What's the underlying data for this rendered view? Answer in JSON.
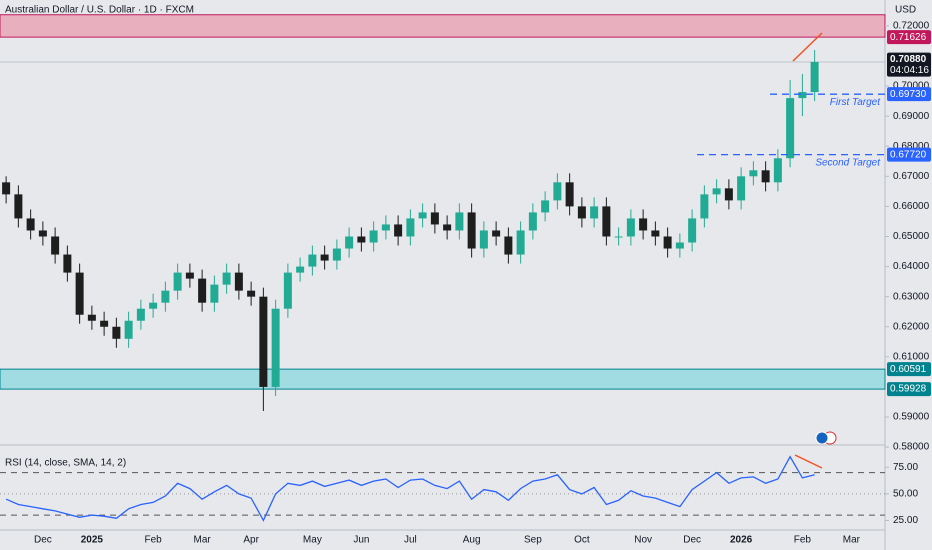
{
  "chart_data": [
    {
      "type": "candlestick",
      "title": "Australian Dollar / U.S. Dollar · 1D · FXCM",
      "currency": "USD",
      "categories": [
        null,
        null,
        null,
        "Dec",
        null,
        null,
        null,
        "2025",
        null,
        null,
        null,
        null,
        "Feb",
        null,
        null,
        null,
        "Mar",
        null,
        null,
        null,
        "Apr",
        null,
        null,
        null,
        null,
        "May",
        null,
        null,
        null,
        "Jun",
        null,
        null,
        null,
        "Jul",
        null,
        null,
        null,
        null,
        "Aug",
        null,
        null,
        null,
        null,
        "Sep",
        null,
        null,
        null,
        "Oct",
        null,
        null,
        null,
        null,
        "Nov",
        null,
        null,
        null,
        "Dec",
        null,
        null,
        null,
        "2026",
        null,
        null,
        null,
        null,
        "Feb",
        null,
        null,
        null,
        "Mar"
      ],
      "open": [
        0.668,
        0.664,
        0.656,
        0.652,
        0.65,
        0.644,
        0.638,
        0.624,
        0.622,
        0.62,
        0.616,
        0.622,
        0.626,
        0.628,
        0.632,
        0.638,
        0.636,
        0.628,
        0.634,
        0.638,
        0.632,
        0.63,
        0.6,
        0.626,
        0.638,
        0.64,
        0.644,
        0.642,
        0.646,
        0.65,
        0.648,
        0.652,
        0.654,
        0.65,
        0.656,
        0.658,
        0.654,
        0.652,
        0.658,
        0.646,
        0.652,
        0.65,
        0.644,
        0.652,
        0.658,
        0.662,
        0.668,
        0.66,
        0.656,
        0.66,
        0.65,
        0.65,
        0.656,
        0.652,
        0.65,
        0.646,
        0.648,
        0.656,
        0.664,
        0.666,
        0.662,
        0.67,
        0.672,
        0.668,
        0.676,
        0.696,
        0.698,
        null,
        null,
        null
      ],
      "high": [
        0.67,
        0.667,
        0.659,
        0.655,
        0.653,
        0.647,
        0.641,
        0.627,
        0.625,
        0.623,
        0.625,
        0.629,
        0.631,
        0.635,
        0.641,
        0.641,
        0.639,
        0.637,
        0.641,
        0.641,
        0.635,
        0.633,
        0.629,
        0.641,
        0.643,
        0.647,
        0.647,
        0.649,
        0.653,
        0.653,
        0.655,
        0.657,
        0.657,
        0.659,
        0.661,
        0.661,
        0.657,
        0.661,
        0.661,
        0.655,
        0.655,
        0.653,
        0.655,
        0.661,
        0.665,
        0.671,
        0.671,
        0.663,
        0.663,
        0.663,
        0.653,
        0.659,
        0.659,
        0.655,
        0.653,
        0.651,
        0.659,
        0.667,
        0.669,
        0.669,
        0.673,
        0.675,
        0.675,
        0.679,
        0.702,
        0.704,
        0.712,
        null,
        null,
        null
      ],
      "low": [
        0.661,
        0.653,
        0.649,
        0.647,
        0.641,
        0.635,
        0.621,
        0.619,
        0.617,
        0.613,
        0.613,
        0.619,
        0.623,
        0.625,
        0.629,
        0.633,
        0.625,
        0.625,
        0.631,
        0.629,
        0.627,
        0.592,
        0.597,
        0.623,
        0.635,
        0.637,
        0.639,
        0.639,
        0.643,
        0.645,
        0.645,
        0.649,
        0.647,
        0.647,
        0.653,
        0.651,
        0.649,
        0.649,
        0.643,
        0.643,
        0.647,
        0.641,
        0.641,
        0.649,
        0.655,
        0.659,
        0.657,
        0.653,
        0.653,
        0.647,
        0.647,
        0.647,
        0.649,
        0.647,
        0.643,
        0.643,
        0.645,
        0.653,
        0.661,
        0.659,
        0.659,
        0.667,
        0.665,
        0.665,
        0.673,
        0.69,
        0.695,
        null,
        null,
        null
      ],
      "close": [
        0.664,
        0.656,
        0.652,
        0.65,
        0.644,
        0.638,
        0.624,
        0.622,
        0.62,
        0.616,
        0.622,
        0.626,
        0.628,
        0.632,
        0.638,
        0.636,
        0.628,
        0.634,
        0.638,
        0.632,
        0.63,
        0.6,
        0.626,
        0.638,
        0.64,
        0.644,
        0.642,
        0.646,
        0.65,
        0.648,
        0.652,
        0.654,
        0.65,
        0.656,
        0.658,
        0.654,
        0.652,
        0.658,
        0.646,
        0.652,
        0.65,
        0.644,
        0.652,
        0.658,
        0.662,
        0.668,
        0.66,
        0.656,
        0.66,
        0.65,
        0.65,
        0.656,
        0.652,
        0.65,
        0.646,
        0.648,
        0.656,
        0.664,
        0.666,
        0.662,
        0.67,
        0.672,
        0.668,
        0.676,
        0.696,
        0.698,
        0.708,
        null,
        null,
        null
      ],
      "up_color": "#22ab94",
      "down_color": "#1e1e1e",
      "ylim": [
        0.5807,
        0.7286
      ],
      "yticks": [
        {
          "value": 0.72,
          "label": "0.72000"
        },
        {
          "value": 0.7,
          "label": "0.70000"
        },
        {
          "value": 0.69,
          "label": "0.69000"
        },
        {
          "value": 0.68,
          "label": "0.68000"
        },
        {
          "value": 0.67,
          "label": "0.67000"
        },
        {
          "value": 0.66,
          "label": "0.66000"
        },
        {
          "value": 0.65,
          "label": "0.65000"
        },
        {
          "value": 0.64,
          "label": "0.64000"
        },
        {
          "value": 0.63,
          "label": "0.63000"
        },
        {
          "value": 0.62,
          "label": "0.62000"
        },
        {
          "value": 0.61,
          "label": "0.61000"
        },
        {
          "value": 0.59,
          "label": "0.59000"
        },
        {
          "value": 0.58,
          "label": "0.58000"
        }
      ],
      "zones": [
        {
          "from": 0.71626,
          "to": 0.7237,
          "color": "#e8a0b4",
          "edge": "#c2185b"
        },
        {
          "from": 0.59928,
          "to": 0.60591,
          "color": "#8ed8e0",
          "edge": "#00838f"
        }
      ],
      "last_price": {
        "value": 0.7088,
        "label": "0.70880"
      },
      "countdown": "04:04:16",
      "levels": [
        {
          "value": {
            "value": 0.6973,
            "label": "0.69730"
          },
          "label": "First Target"
        },
        {
          "value": {
            "value": 0.6772,
            "label": "0.67720"
          },
          "label": "Second Target"
        }
      ],
      "level_color": "#2962ff"
    },
    {
      "type": "line",
      "title": "RSI (14, close, SMA, 14, 2)",
      "color": "#2962ff",
      "values": [
        45,
        40,
        38,
        36,
        34,
        31,
        28,
        30,
        29,
        27,
        36,
        40,
        42,
        48,
        60,
        55,
        45,
        52,
        58,
        50,
        46,
        25,
        50,
        60,
        58,
        62,
        57,
        60,
        63,
        58,
        62,
        64,
        56,
        63,
        64,
        58,
        55,
        62,
        45,
        54,
        52,
        44,
        55,
        62,
        64,
        68,
        54,
        50,
        56,
        40,
        44,
        53,
        48,
        46,
        42,
        38,
        54,
        62,
        70,
        60,
        65,
        66,
        60,
        64,
        85,
        65,
        68,
        null,
        null,
        null
      ],
      "ylim": [
        16,
        96
      ],
      "yticks": [
        {
          "value": 75,
          "label": "75.00"
        },
        {
          "value": 50,
          "label": "50.00"
        },
        {
          "value": 25,
          "label": "25.00"
        }
      ],
      "bands": [
        70,
        30
      ],
      "midline": 50
    }
  ]
}
